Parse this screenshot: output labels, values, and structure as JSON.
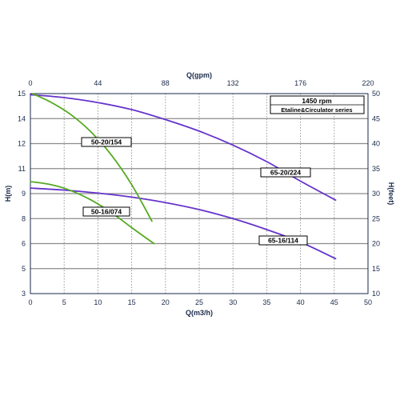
{
  "chart_data": {
    "type": "line",
    "xlabel_bottom": "Q(m3/h)",
    "xlabel_top": "Q(gpm)",
    "ylabel_left": "H(m)",
    "ylabel_right": "H(feet)",
    "xlim": [
      0,
      50
    ],
    "x_ticks": [
      "0",
      "5",
      "10",
      "15",
      "20",
      "25",
      "30",
      "35",
      "40",
      "45",
      "50"
    ],
    "top_x_ticks": [
      "0",
      "44",
      "88",
      "132",
      "176",
      "220"
    ],
    "left_y_ticks": [
      "3",
      "5",
      "6",
      "8",
      "9",
      "11",
      "12",
      "14",
      "15"
    ],
    "right_y_ticks": [
      "10",
      "15",
      "20",
      "25",
      "30",
      "35",
      "40",
      "45",
      "50"
    ],
    "ylim_feet": [
      10,
      50
    ],
    "info_box": [
      "1450 rpm",
      "Etaline&Circulator series"
    ],
    "grid": true,
    "colors": {
      "purple": "#6633cc",
      "green": "#55aa22",
      "grid": "#8c8c8c"
    },
    "series": [
      {
        "name": "65-20/224",
        "color": "#6633cc",
        "x": [
          0,
          5,
          10,
          15,
          20,
          25,
          30,
          35,
          40,
          45.2
        ],
        "y_feet": [
          49.8,
          49.2,
          48.2,
          46.8,
          44.8,
          42.5,
          39.7,
          36.4,
          32.5,
          28.7
        ]
      },
      {
        "name": "65-16/114",
        "color": "#6633cc",
        "x": [
          0,
          5,
          10,
          15,
          20,
          25,
          30,
          35,
          40,
          45.2
        ],
        "y_feet": [
          31.1,
          30.7,
          30.1,
          29.3,
          28.2,
          26.8,
          25.0,
          22.8,
          20.3,
          17.0
        ]
      },
      {
        "name": "50-20/154",
        "color": "#55aa22",
        "x": [
          0.3,
          3,
          6,
          9,
          12,
          15,
          18
        ],
        "y_feet": [
          50.0,
          48.3,
          45.8,
          42.3,
          37.7,
          31.8,
          24.5
        ]
      },
      {
        "name": "50-16/074",
        "color": "#55aa22",
        "x": [
          0,
          3,
          6,
          9,
          12,
          15,
          18.3
        ],
        "y_feet": [
          32.4,
          31.8,
          30.6,
          28.7,
          26.2,
          23.2,
          20.0
        ]
      }
    ]
  }
}
